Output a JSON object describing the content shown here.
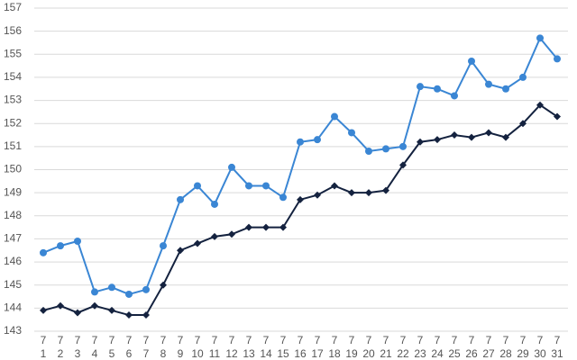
{
  "chart_data": {
    "type": "line",
    "categories": [
      [
        "7",
        "1"
      ],
      [
        "7",
        "2"
      ],
      [
        "7",
        "3"
      ],
      [
        "7",
        "4"
      ],
      [
        "7",
        "5"
      ],
      [
        "7",
        "6"
      ],
      [
        "7",
        "7"
      ],
      [
        "7",
        "8"
      ],
      [
        "7",
        "9"
      ],
      [
        "7",
        "10"
      ],
      [
        "7",
        "11"
      ],
      [
        "7",
        "12"
      ],
      [
        "7",
        "13"
      ],
      [
        "7",
        "14"
      ],
      [
        "7",
        "15"
      ],
      [
        "7",
        "16"
      ],
      [
        "7",
        "17"
      ],
      [
        "7",
        "18"
      ],
      [
        "7",
        "19"
      ],
      [
        "7",
        "20"
      ],
      [
        "7",
        "21"
      ],
      [
        "7",
        "22"
      ],
      [
        "7",
        "23"
      ],
      [
        "7",
        "24"
      ],
      [
        "7",
        "25"
      ],
      [
        "7",
        "26"
      ],
      [
        "7",
        "27"
      ],
      [
        "7",
        "28"
      ],
      [
        "7",
        "29"
      ],
      [
        "7",
        "30"
      ],
      [
        "7",
        "31"
      ]
    ],
    "series": [
      {
        "color": "#3a86d4",
        "marker": "circle",
        "values": [
          146.4,
          146.7,
          146.9,
          144.7,
          144.9,
          144.6,
          144.8,
          146.7,
          148.7,
          149.3,
          148.5,
          150.1,
          149.3,
          149.3,
          148.8,
          151.2,
          151.3,
          152.3,
          151.6,
          150.8,
          150.9,
          151.0,
          153.6,
          153.5,
          153.2,
          154.7,
          153.7,
          153.5,
          154.0,
          155.7,
          154.8
        ]
      },
      {
        "color": "#14223f",
        "marker": "diamond",
        "values": [
          143.9,
          144.1,
          143.8,
          144.1,
          143.9,
          143.7,
          143.7,
          145.0,
          146.5,
          146.8,
          147.1,
          147.2,
          147.5,
          147.5,
          147.5,
          148.7,
          148.9,
          149.3,
          149.0,
          149.0,
          149.1,
          150.2,
          151.2,
          151.3,
          151.5,
          151.4,
          151.6,
          151.4,
          152.0,
          152.8,
          152.3
        ]
      }
    ],
    "ylim": [
      143,
      157
    ],
    "yticks": [
      143,
      144,
      145,
      146,
      147,
      148,
      149,
      150,
      151,
      152,
      153,
      154,
      155,
      156,
      157
    ],
    "grid": true
  }
}
